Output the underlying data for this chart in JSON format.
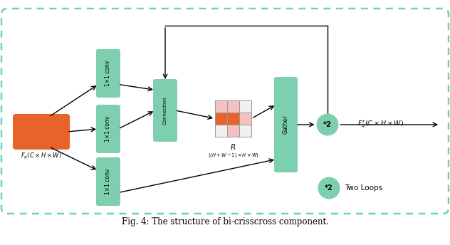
{
  "bg_color": "#ffffff",
  "border_color": "#6dd5b5",
  "green_box_color": "#7dcfb0",
  "orange_box_color": "#e8632a",
  "fig_caption": "Fig. 4: The structure of bi-crisscross component.",
  "conv_label": "1×1 conv",
  "connection_label": "Connection",
  "gather_label": "Gather",
  "fq_label": "$F_q(C \\times H \\times W)$",
  "fq_out_label": "$F_q^{\\prime\\prime}(C \\times H \\times W)$",
  "R_label": "$R$",
  "R_dim_label": "$((H+W-1)\\times H\\times W)$",
  "star2_label": "*2",
  "two_loops_label": "Two Loops",
  "grid_colors": [
    [
      "#f5c0c0",
      "#f5c0c0",
      "#f0f0f0"
    ],
    [
      "#e8632a",
      "#e8632a",
      "#f5c0c0"
    ],
    [
      "#f0f0f0",
      "#f5c0c0",
      "#f0f0f0"
    ]
  ]
}
